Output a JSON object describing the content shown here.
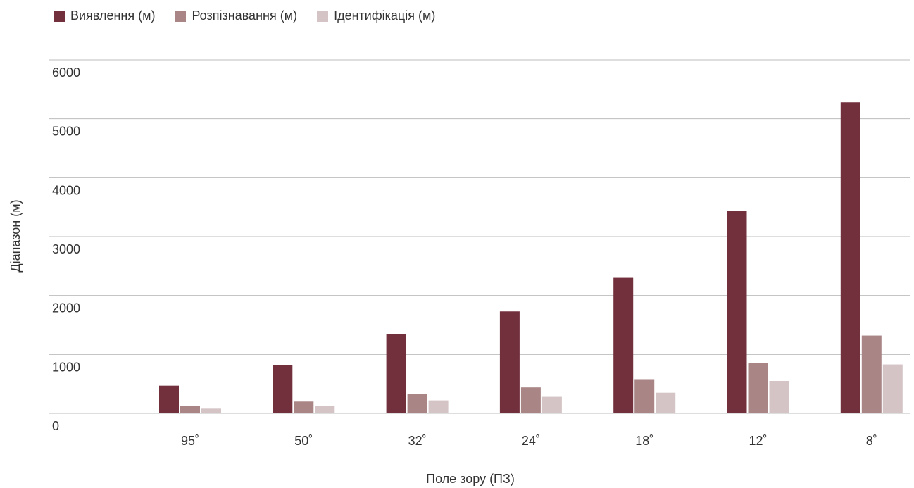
{
  "chart_data": {
    "type": "bar",
    "xlabel": "Поле зору (ПЗ)",
    "ylabel": "Діапазон (м)",
    "ylim": [
      0,
      6000
    ],
    "yticks": [
      "0",
      "1000",
      "2000",
      "3000",
      "4000",
      "5000",
      "6000"
    ],
    "ytick_values": [
      0,
      1000,
      2000,
      3000,
      4000,
      5000,
      6000
    ],
    "categories": [
      "95˚",
      "50˚",
      "32˚",
      "24˚",
      "18˚",
      "12˚",
      "8˚"
    ],
    "grid": true,
    "legend_position": "top-left",
    "series": [
      {
        "name": "Виявлення (м)",
        "color": "#722f3c",
        "values": [
          470,
          820,
          1350,
          1730,
          2300,
          3440,
          5280
        ]
      },
      {
        "name": "Розпізнавання (м)",
        "color": "#a98586",
        "values": [
          120,
          200,
          330,
          440,
          580,
          860,
          1320
        ]
      },
      {
        "name": "Ідентифікація (м)",
        "color": "#d5c4c6",
        "values": [
          80,
          130,
          220,
          280,
          350,
          550,
          830
        ]
      }
    ]
  }
}
